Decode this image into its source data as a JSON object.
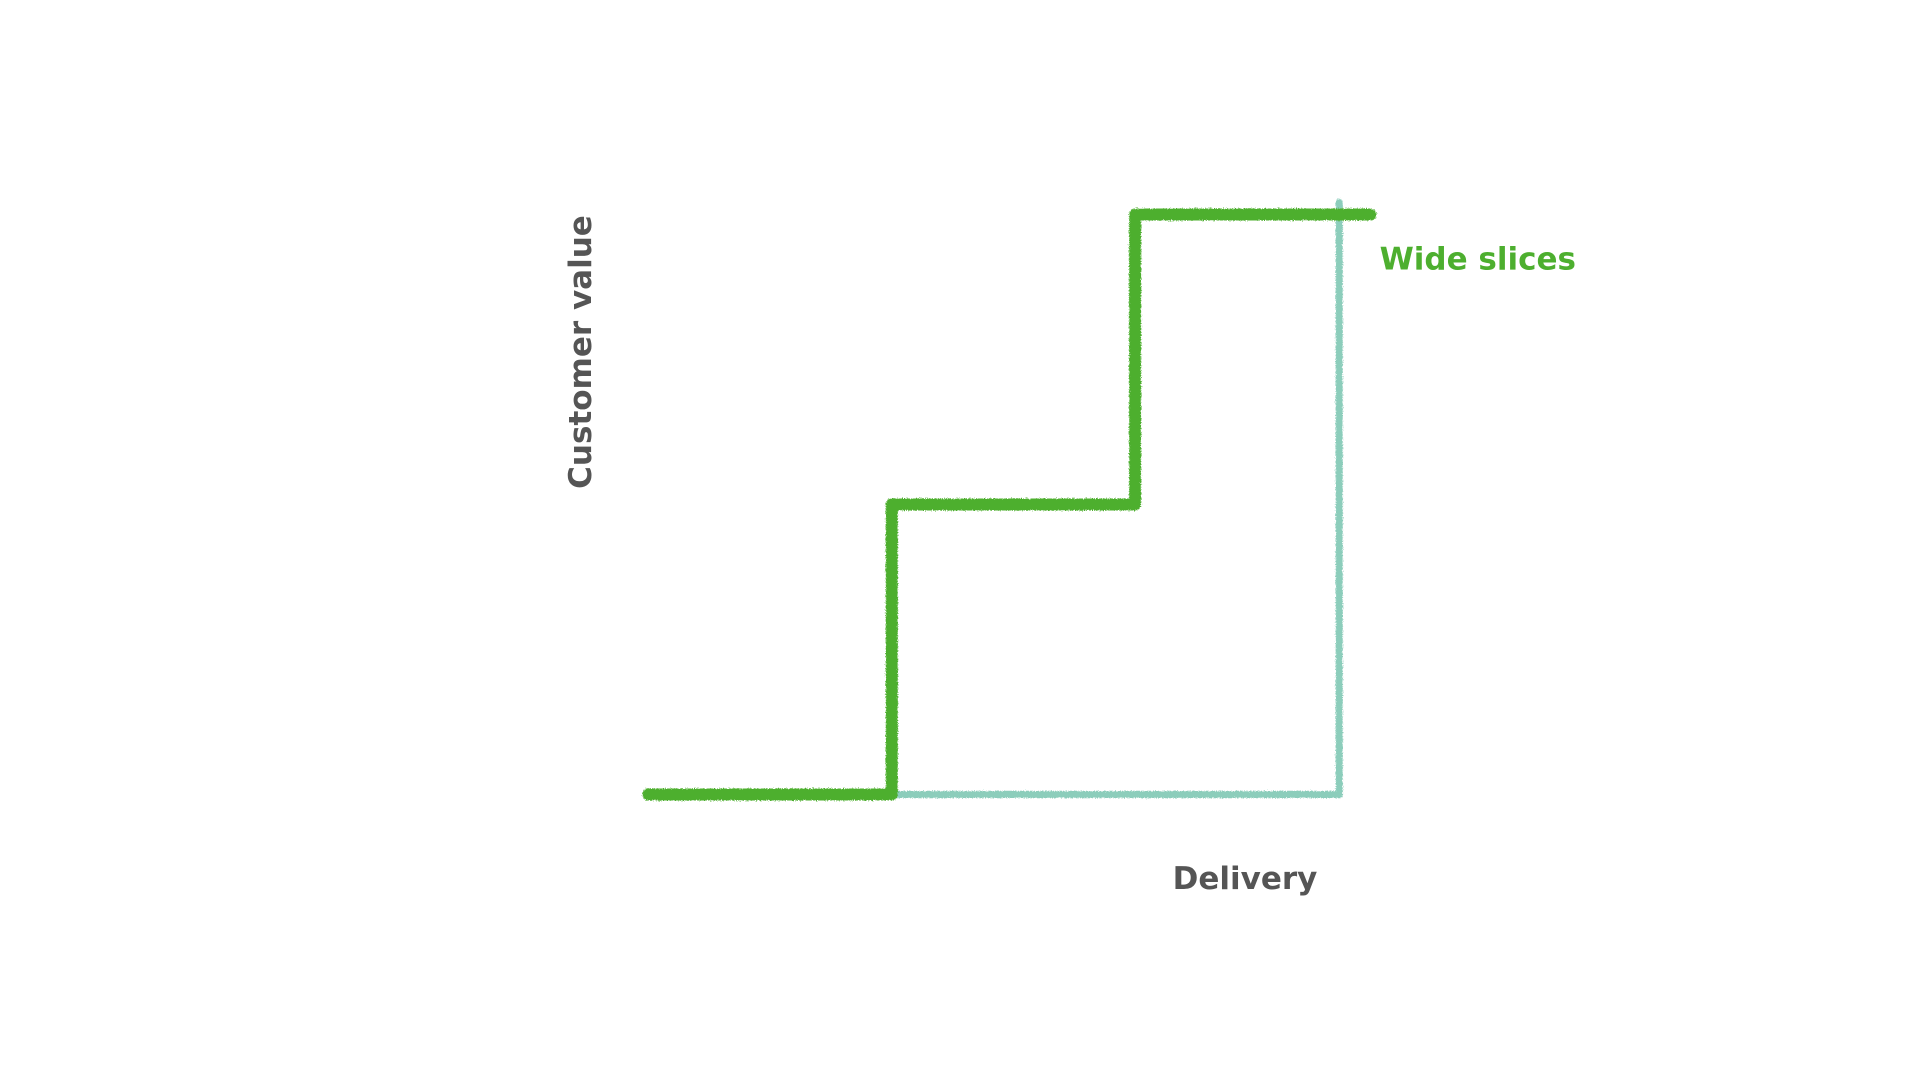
{
  "chart_data": {
    "type": "line",
    "step": true,
    "xlabel": "Delivery",
    "ylabel": "Customer value",
    "title": "",
    "xlim": [
      0,
      100
    ],
    "ylim": [
      0,
      100
    ],
    "grid": false,
    "series": [
      {
        "name": "Wide slices",
        "color": "#4daf2f",
        "labeled": true,
        "points": [
          [
            4,
            3
          ],
          [
            35,
            3
          ],
          [
            35,
            50
          ],
          [
            66,
            50
          ],
          [
            66,
            97
          ],
          [
            96,
            97
          ]
        ]
      },
      {
        "name": "",
        "color": "#8ccdbb",
        "labeled": false,
        "points": [
          [
            35,
            3
          ],
          [
            92,
            3
          ],
          [
            92,
            99
          ]
        ]
      }
    ]
  }
}
